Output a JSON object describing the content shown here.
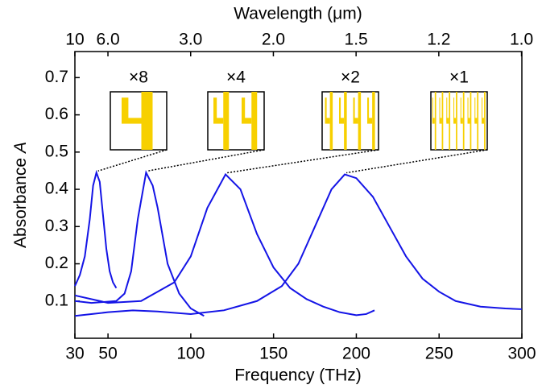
{
  "chart_data": {
    "type": "line",
    "xlabel": "Frequency (THz)",
    "x2label": "Wavelength (μm)",
    "ylabel": "Absorbance",
    "ylabel_symbol": "A",
    "xlim": [
      30,
      300
    ],
    "xticks": [
      30,
      50,
      100,
      150,
      200,
      250,
      300
    ],
    "x2ticks": [
      10,
      {
        "value": 6,
        "label": "6.0"
      },
      {
        "value": 3,
        "label": "3.0"
      },
      {
        "value": 2,
        "label": "2.0"
      },
      1.5,
      1.2,
      {
        "value": 1,
        "label": "1.0"
      }
    ],
    "ylim": [
      0,
      0.77
    ],
    "yticks": [
      0.1,
      0.2,
      0.3,
      0.4,
      0.5,
      0.6,
      0.7
    ],
    "series": [
      {
        "name": "×8",
        "color": "#1414e6",
        "x": [
          30,
          33,
          36,
          39,
          41,
          43,
          45,
          47,
          49,
          51,
          53,
          55
        ],
        "values": [
          0.14,
          0.17,
          0.22,
          0.32,
          0.41,
          0.445,
          0.42,
          0.33,
          0.24,
          0.18,
          0.15,
          0.135
        ]
      },
      {
        "name": "×4",
        "color": "#1414e6",
        "x": [
          30,
          40,
          55,
          60,
          64,
          68,
          73,
          77,
          80,
          86,
          93,
          100,
          108
        ],
        "values": [
          0.1,
          0.095,
          0.1,
          0.12,
          0.18,
          0.32,
          0.445,
          0.41,
          0.35,
          0.2,
          0.12,
          0.08,
          0.06
        ]
      },
      {
        "name": "×2",
        "color": "#1414e6",
        "x": [
          30,
          50,
          70,
          90,
          100,
          110,
          121,
          130,
          140,
          150,
          160,
          170,
          180,
          190,
          200,
          206,
          211
        ],
        "values": [
          0.115,
          0.095,
          0.1,
          0.15,
          0.22,
          0.35,
          0.44,
          0.4,
          0.28,
          0.19,
          0.135,
          0.105,
          0.085,
          0.07,
          0.062,
          0.065,
          0.075
        ]
      },
      {
        "name": "×1",
        "color": "#1414e6",
        "x": [
          30,
          50,
          65,
          80,
          100,
          120,
          140,
          155,
          165,
          175,
          185,
          193,
          200,
          210,
          220,
          230,
          240,
          250,
          260,
          275,
          290,
          300
        ],
        "values": [
          0.06,
          0.07,
          0.075,
          0.072,
          0.065,
          0.075,
          0.1,
          0.14,
          0.2,
          0.3,
          0.4,
          0.44,
          0.43,
          0.38,
          0.3,
          0.22,
          0.16,
          0.125,
          0.1,
          0.085,
          0.08,
          0.078
        ]
      }
    ]
  }
}
